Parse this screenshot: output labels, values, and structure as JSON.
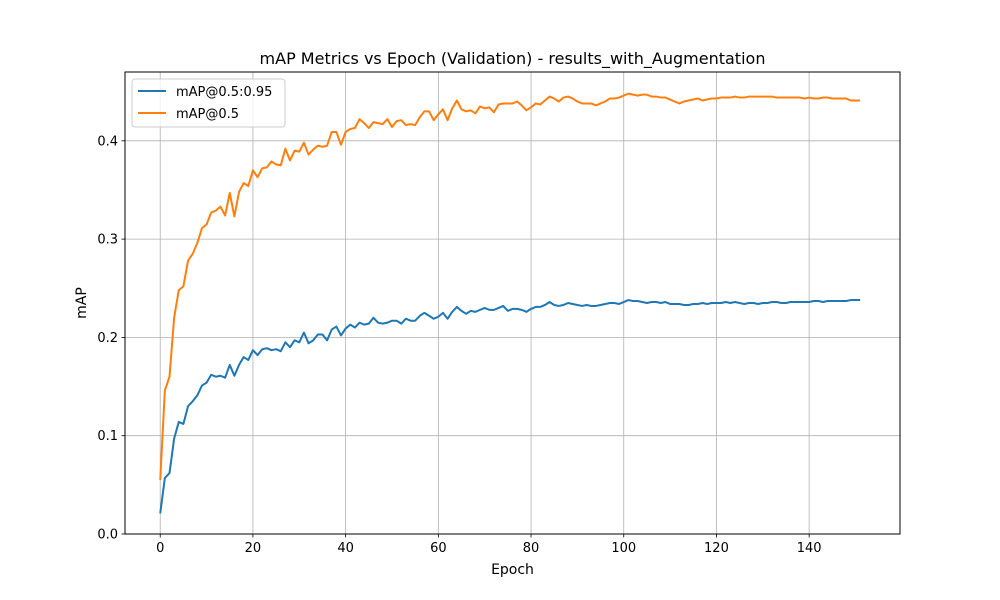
{
  "chart_data": {
    "type": "line",
    "title": "mAP Metrics vs Epoch (Validation) - results_with_Augmentation",
    "xlabel": "Epoch",
    "ylabel": "mAP",
    "xlim": [
      -7.6,
      159.6
    ],
    "ylim": [
      0.0,
      0.47
    ],
    "xticks": [
      0,
      20,
      40,
      60,
      80,
      100,
      120,
      140
    ],
    "yticks": [
      0.0,
      0.1,
      0.2,
      0.3,
      0.4
    ],
    "xtick_labels": [
      "0",
      "20",
      "40",
      "60",
      "80",
      "100",
      "120",
      "140"
    ],
    "ytick_labels": [
      "0.0",
      "0.1",
      "0.2",
      "0.3",
      "0.4"
    ],
    "grid": true,
    "legend_position": "top-left",
    "series": [
      {
        "name": "mAP@0.5:0.95",
        "color": "#1f77b4",
        "values": [
          0.021,
          0.057,
          0.062,
          0.097,
          0.114,
          0.112,
          0.13,
          0.135,
          0.141,
          0.151,
          0.154,
          0.162,
          0.16,
          0.161,
          0.159,
          0.172,
          0.161,
          0.172,
          0.18,
          0.177,
          0.187,
          0.182,
          0.188,
          0.189,
          0.187,
          0.188,
          0.186,
          0.195,
          0.19,
          0.197,
          0.195,
          0.205,
          0.194,
          0.197,
          0.203,
          0.203,
          0.197,
          0.208,
          0.211,
          0.202,
          0.209,
          0.213,
          0.21,
          0.215,
          0.213,
          0.214,
          0.22,
          0.215,
          0.214,
          0.215,
          0.217,
          0.217,
          0.214,
          0.219,
          0.217,
          0.217,
          0.222,
          0.225,
          0.222,
          0.219,
          0.221,
          0.225,
          0.219,
          0.226,
          0.231,
          0.227,
          0.224,
          0.227,
          0.226,
          0.228,
          0.23,
          0.228,
          0.228,
          0.23,
          0.232,
          0.227,
          0.229,
          0.229,
          0.228,
          0.226,
          0.229,
          0.231,
          0.231,
          0.233,
          0.236,
          0.233,
          0.232,
          0.233,
          0.235,
          0.234,
          0.233,
          0.232,
          0.233,
          0.232,
          0.232,
          0.233,
          0.234,
          0.235,
          0.235,
          0.234,
          0.236,
          0.238,
          0.237,
          0.237,
          0.236,
          0.235,
          0.236,
          0.236,
          0.235,
          0.236,
          0.234,
          0.234,
          0.234,
          0.233,
          0.233,
          0.234,
          0.234,
          0.235,
          0.234,
          0.235,
          0.235,
          0.235,
          0.236,
          0.235,
          0.236,
          0.235,
          0.234,
          0.235,
          0.235,
          0.234,
          0.235,
          0.235,
          0.236,
          0.236,
          0.235,
          0.235,
          0.236,
          0.236,
          0.236,
          0.236,
          0.236,
          0.237,
          0.237,
          0.236,
          0.237,
          0.237,
          0.237,
          0.237,
          0.237,
          0.238,
          0.238,
          0.238
        ]
      },
      {
        "name": "mAP@0.5",
        "color": "#ff7f0e",
        "values": [
          0.055,
          0.146,
          0.16,
          0.22,
          0.248,
          0.252,
          0.278,
          0.285,
          0.296,
          0.311,
          0.315,
          0.327,
          0.329,
          0.333,
          0.324,
          0.347,
          0.323,
          0.348,
          0.357,
          0.354,
          0.37,
          0.363,
          0.372,
          0.373,
          0.379,
          0.376,
          0.375,
          0.392,
          0.38,
          0.39,
          0.389,
          0.398,
          0.386,
          0.391,
          0.395,
          0.394,
          0.395,
          0.409,
          0.409,
          0.396,
          0.409,
          0.412,
          0.413,
          0.422,
          0.418,
          0.413,
          0.419,
          0.418,
          0.417,
          0.422,
          0.414,
          0.42,
          0.421,
          0.416,
          0.417,
          0.416,
          0.424,
          0.43,
          0.43,
          0.421,
          0.427,
          0.432,
          0.421,
          0.433,
          0.441,
          0.432,
          0.43,
          0.431,
          0.428,
          0.435,
          0.433,
          0.434,
          0.429,
          0.437,
          0.438,
          0.438,
          0.438,
          0.44,
          0.436,
          0.431,
          0.434,
          0.438,
          0.437,
          0.441,
          0.445,
          0.443,
          0.44,
          0.444,
          0.445,
          0.443,
          0.44,
          0.438,
          0.438,
          0.438,
          0.436,
          0.438,
          0.44,
          0.443,
          0.443,
          0.444,
          0.446,
          0.448,
          0.447,
          0.446,
          0.447,
          0.447,
          0.445,
          0.445,
          0.444,
          0.444,
          0.442,
          0.44,
          0.438,
          0.44,
          0.441,
          0.442,
          0.443,
          0.441,
          0.442,
          0.443,
          0.443,
          0.444,
          0.444,
          0.444,
          0.445,
          0.444,
          0.444,
          0.445,
          0.445,
          0.445,
          0.445,
          0.445,
          0.445,
          0.444,
          0.444,
          0.444,
          0.444,
          0.444,
          0.444,
          0.443,
          0.444,
          0.443,
          0.443,
          0.444,
          0.444,
          0.443,
          0.443,
          0.443,
          0.443,
          0.441,
          0.441,
          0.441
        ]
      }
    ]
  }
}
